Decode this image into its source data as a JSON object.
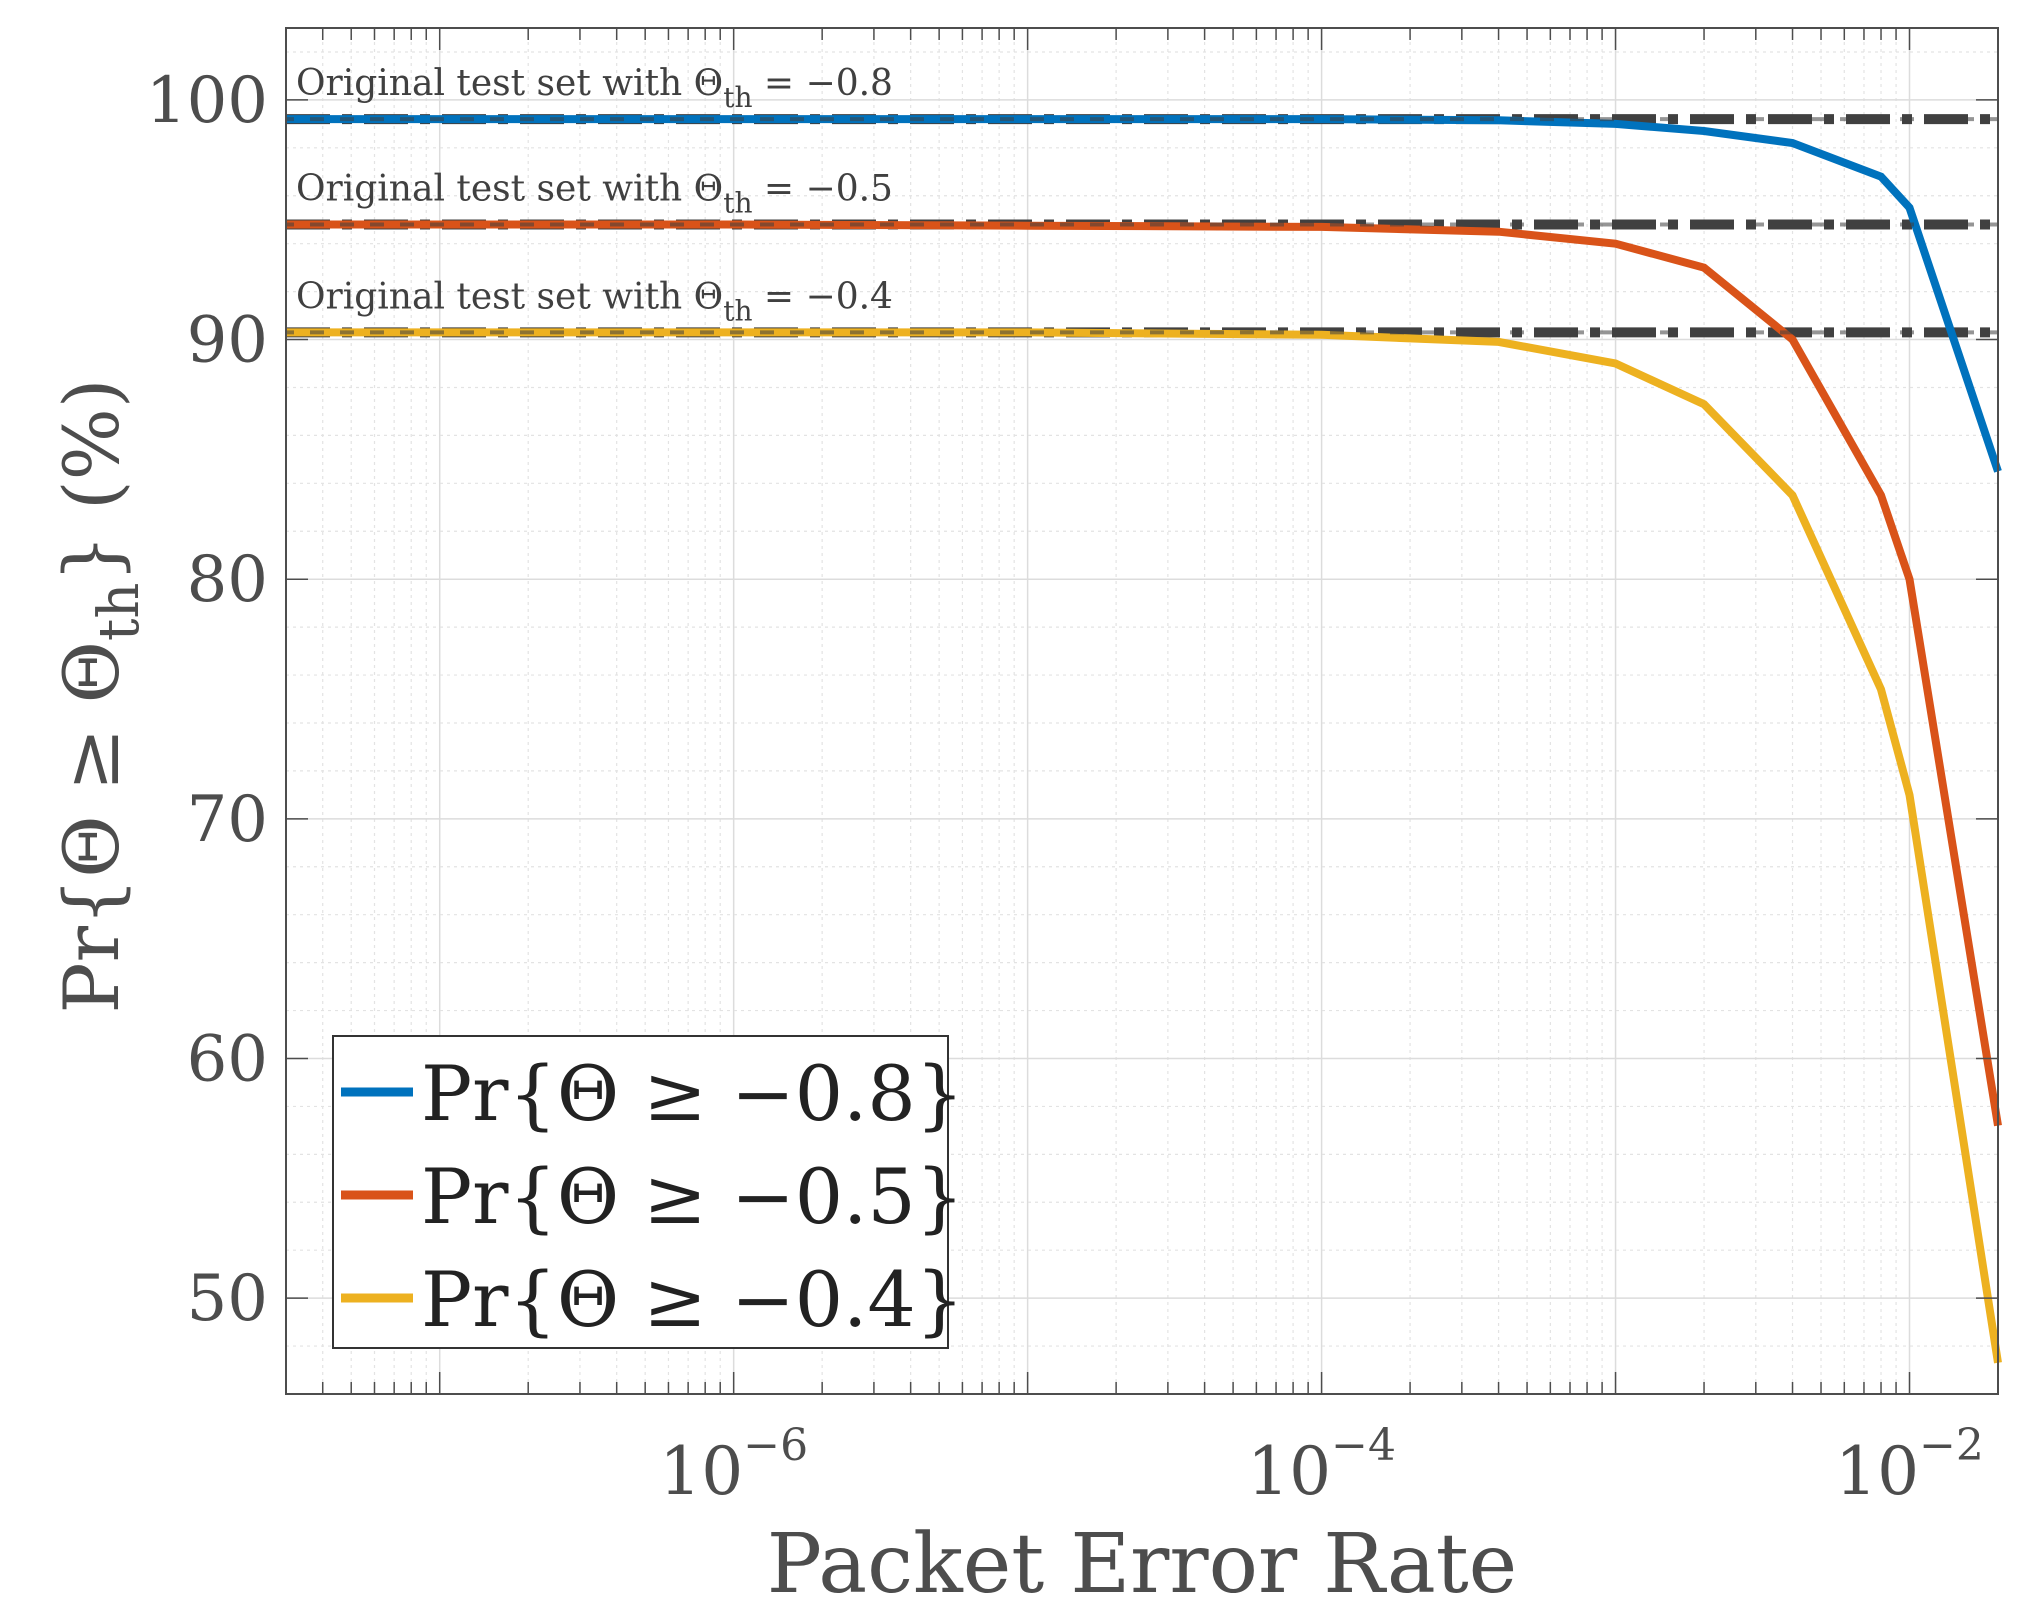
{
  "chart_data": {
    "type": "line",
    "title": "",
    "xlabel": "Packet Error Rate",
    "ylabel": "Pr{Θ ≥ Θth} (%)",
    "xscale": "log",
    "xlim": [
      3e-08,
      0.02
    ],
    "ylim": [
      46,
      103
    ],
    "grid": true,
    "legend_position": "bottom-left",
    "colors": {
      "axis": "#4d4d4d",
      "grid": "#e3e3e3",
      "ref_line": "#404040"
    },
    "x_ticks": [
      {
        "value": 1e-06,
        "base": "10",
        "exp": "−6"
      },
      {
        "value": 0.0001,
        "base": "10",
        "exp": "−4"
      },
      {
        "value": 0.01,
        "base": "10",
        "exp": "−2"
      }
    ],
    "y_ticks": [
      {
        "value": 50,
        "label": "50"
      },
      {
        "value": 60,
        "label": "60"
      },
      {
        "value": 70,
        "label": "70"
      },
      {
        "value": 80,
        "label": "80"
      },
      {
        "value": 90,
        "label": "90"
      },
      {
        "value": 100,
        "label": "100"
      }
    ],
    "x": [
      3e-08,
      1e-07,
      1e-06,
      1e-05,
      0.0001,
      0.0004,
      0.001,
      0.002,
      0.004,
      0.008,
      0.01,
      0.02
    ],
    "series": [
      {
        "name": "Pr{Θ ≥ −0.8}",
        "legend_prefix": "Pr{Θ ≥ ",
        "legend_value": "−0.8",
        "legend_suffix": "}",
        "color": "#0072BD",
        "values": [
          99.2,
          99.2,
          99.2,
          99.2,
          99.2,
          99.15,
          99.0,
          98.7,
          98.2,
          96.8,
          95.5,
          84.5
        ]
      },
      {
        "name": "Pr{Θ ≥ −0.5}",
        "legend_prefix": "Pr{Θ ≥ ",
        "legend_value": "−0.5",
        "legend_suffix": "}",
        "color": "#D95319",
        "values": [
          94.8,
          94.8,
          94.8,
          94.75,
          94.7,
          94.5,
          94.0,
          93.0,
          90.0,
          83.5,
          80.0,
          57.2
        ]
      },
      {
        "name": "Pr{Θ ≥ −0.4}",
        "legend_prefix": "Pr{Θ ≥ ",
        "legend_value": "−0.4",
        "legend_suffix": "}",
        "color": "#EDB120",
        "values": [
          90.3,
          90.3,
          90.3,
          90.3,
          90.2,
          89.9,
          89.0,
          87.3,
          83.5,
          75.4,
          71.0,
          47.3
        ]
      }
    ],
    "reference_lines": [
      {
        "y": 99.2,
        "label_prefix": "Original test set with ",
        "label_theta": "Θ",
        "label_sub": "th",
        "label_eq": " = ",
        "label_value": "−0.8"
      },
      {
        "y": 94.8,
        "label_prefix": "Original test set with ",
        "label_theta": "Θ",
        "label_sub": "th",
        "label_eq": " = ",
        "label_value": "−0.5"
      },
      {
        "y": 90.3,
        "label_prefix": "Original test set with ",
        "label_theta": "Θ",
        "label_sub": "th",
        "label_eq": " = ",
        "label_value": "−0.4"
      }
    ],
    "ylabel_parts": {
      "main": "Pr{Θ ≥ Θ",
      "sub": "th",
      "tail": "} (%)"
    }
  }
}
